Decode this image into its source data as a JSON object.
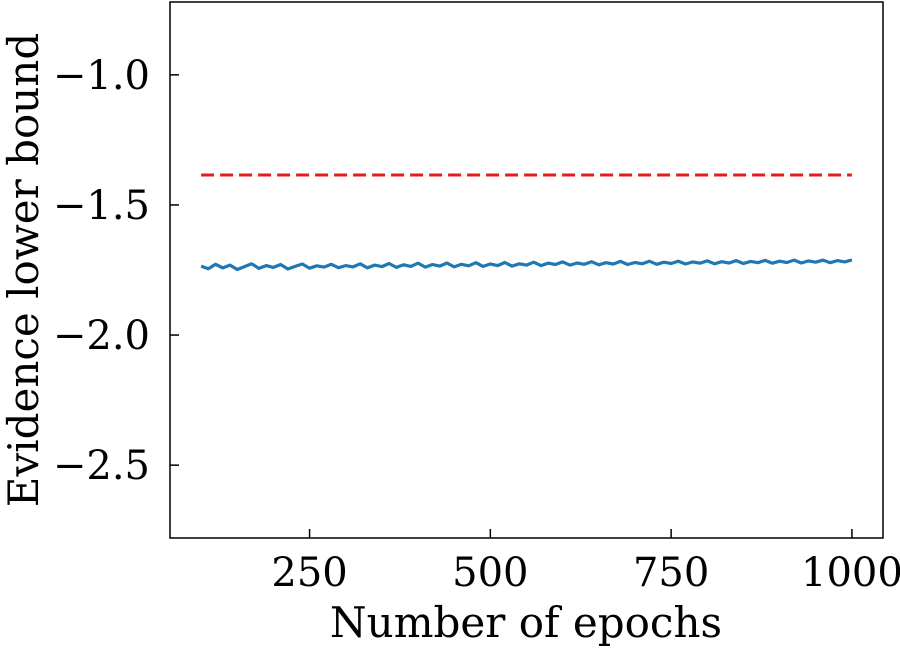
{
  "chart_data": {
    "type": "line",
    "title": "",
    "xlabel": "Number of epochs",
    "ylabel": "Evidence lower bound",
    "xlim": [
      57,
      1043
    ],
    "ylim": [
      -2.78,
      -0.72
    ],
    "xticks": [
      250,
      500,
      750,
      1000
    ],
    "xtick_labels": [
      "250",
      "500",
      "750",
      "1000"
    ],
    "yticks": [
      -1.0,
      -1.5,
      -2.0,
      -2.5
    ],
    "ytick_labels": [
      "−1.0",
      "−1.5",
      "−2.0",
      "−2.5"
    ],
    "grid": false,
    "legend": "none",
    "series": [
      {
        "style": "solid",
        "color": "#1f77b4",
        "x_start": 100,
        "x_step": 10,
        "x_end": 1000,
        "values": [
          -1.735,
          -1.745,
          -1.728,
          -1.742,
          -1.731,
          -1.748,
          -1.737,
          -1.726,
          -1.744,
          -1.733,
          -1.74,
          -1.729,
          -1.746,
          -1.736,
          -1.727,
          -1.743,
          -1.734,
          -1.739,
          -1.728,
          -1.741,
          -1.733,
          -1.738,
          -1.726,
          -1.742,
          -1.731,
          -1.737,
          -1.725,
          -1.74,
          -1.73,
          -1.736,
          -1.724,
          -1.739,
          -1.729,
          -1.735,
          -1.723,
          -1.738,
          -1.728,
          -1.734,
          -1.722,
          -1.736,
          -1.727,
          -1.733,
          -1.721,
          -1.735,
          -1.726,
          -1.731,
          -1.72,
          -1.733,
          -1.724,
          -1.729,
          -1.719,
          -1.731,
          -1.723,
          -1.728,
          -1.718,
          -1.73,
          -1.722,
          -1.727,
          -1.717,
          -1.729,
          -1.721,
          -1.726,
          -1.716,
          -1.728,
          -1.72,
          -1.725,
          -1.716,
          -1.727,
          -1.719,
          -1.724,
          -1.715,
          -1.726,
          -1.718,
          -1.723,
          -1.714,
          -1.725,
          -1.717,
          -1.722,
          -1.713,
          -1.724,
          -1.716,
          -1.721,
          -1.712,
          -1.723,
          -1.715,
          -1.72,
          -1.712,
          -1.722,
          -1.714,
          -1.719,
          -1.711
        ]
      },
      {
        "style": "dashed",
        "color": "#e41a1c",
        "x": [
          100,
          1000
        ],
        "values": [
          -1.385,
          -1.385
        ]
      }
    ]
  }
}
